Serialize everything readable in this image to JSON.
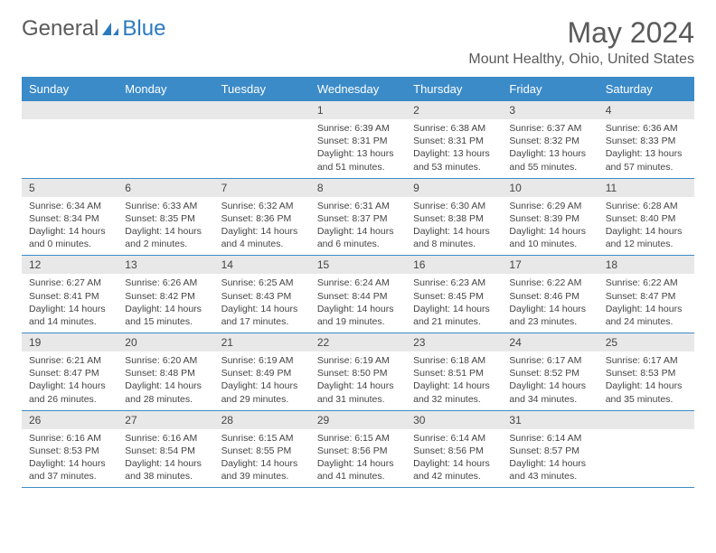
{
  "logo": {
    "text1": "General",
    "text2": "Blue"
  },
  "title": "May 2024",
  "location": "Mount Healthy, Ohio, United States",
  "colors": {
    "header_bg": "#3b8bc9",
    "header_text": "#ffffff",
    "daynum_bg": "#e8e8e8",
    "border": "#3b8bc9",
    "text": "#444444",
    "logo_gray": "#5a5a5a",
    "logo_blue": "#2b7bbf"
  },
  "day_names": [
    "Sunday",
    "Monday",
    "Tuesday",
    "Wednesday",
    "Thursday",
    "Friday",
    "Saturday"
  ],
  "weeks": [
    [
      {
        "n": "",
        "sr": "",
        "ss": "",
        "dl": ""
      },
      {
        "n": "",
        "sr": "",
        "ss": "",
        "dl": ""
      },
      {
        "n": "",
        "sr": "",
        "ss": "",
        "dl": ""
      },
      {
        "n": "1",
        "sr": "Sunrise: 6:39 AM",
        "ss": "Sunset: 8:31 PM",
        "dl": "Daylight: 13 hours and 51 minutes."
      },
      {
        "n": "2",
        "sr": "Sunrise: 6:38 AM",
        "ss": "Sunset: 8:31 PM",
        "dl": "Daylight: 13 hours and 53 minutes."
      },
      {
        "n": "3",
        "sr": "Sunrise: 6:37 AM",
        "ss": "Sunset: 8:32 PM",
        "dl": "Daylight: 13 hours and 55 minutes."
      },
      {
        "n": "4",
        "sr": "Sunrise: 6:36 AM",
        "ss": "Sunset: 8:33 PM",
        "dl": "Daylight: 13 hours and 57 minutes."
      }
    ],
    [
      {
        "n": "5",
        "sr": "Sunrise: 6:34 AM",
        "ss": "Sunset: 8:34 PM",
        "dl": "Daylight: 14 hours and 0 minutes."
      },
      {
        "n": "6",
        "sr": "Sunrise: 6:33 AM",
        "ss": "Sunset: 8:35 PM",
        "dl": "Daylight: 14 hours and 2 minutes."
      },
      {
        "n": "7",
        "sr": "Sunrise: 6:32 AM",
        "ss": "Sunset: 8:36 PM",
        "dl": "Daylight: 14 hours and 4 minutes."
      },
      {
        "n": "8",
        "sr": "Sunrise: 6:31 AM",
        "ss": "Sunset: 8:37 PM",
        "dl": "Daylight: 14 hours and 6 minutes."
      },
      {
        "n": "9",
        "sr": "Sunrise: 6:30 AM",
        "ss": "Sunset: 8:38 PM",
        "dl": "Daylight: 14 hours and 8 minutes."
      },
      {
        "n": "10",
        "sr": "Sunrise: 6:29 AM",
        "ss": "Sunset: 8:39 PM",
        "dl": "Daylight: 14 hours and 10 minutes."
      },
      {
        "n": "11",
        "sr": "Sunrise: 6:28 AM",
        "ss": "Sunset: 8:40 PM",
        "dl": "Daylight: 14 hours and 12 minutes."
      }
    ],
    [
      {
        "n": "12",
        "sr": "Sunrise: 6:27 AM",
        "ss": "Sunset: 8:41 PM",
        "dl": "Daylight: 14 hours and 14 minutes."
      },
      {
        "n": "13",
        "sr": "Sunrise: 6:26 AM",
        "ss": "Sunset: 8:42 PM",
        "dl": "Daylight: 14 hours and 15 minutes."
      },
      {
        "n": "14",
        "sr": "Sunrise: 6:25 AM",
        "ss": "Sunset: 8:43 PM",
        "dl": "Daylight: 14 hours and 17 minutes."
      },
      {
        "n": "15",
        "sr": "Sunrise: 6:24 AM",
        "ss": "Sunset: 8:44 PM",
        "dl": "Daylight: 14 hours and 19 minutes."
      },
      {
        "n": "16",
        "sr": "Sunrise: 6:23 AM",
        "ss": "Sunset: 8:45 PM",
        "dl": "Daylight: 14 hours and 21 minutes."
      },
      {
        "n": "17",
        "sr": "Sunrise: 6:22 AM",
        "ss": "Sunset: 8:46 PM",
        "dl": "Daylight: 14 hours and 23 minutes."
      },
      {
        "n": "18",
        "sr": "Sunrise: 6:22 AM",
        "ss": "Sunset: 8:47 PM",
        "dl": "Daylight: 14 hours and 24 minutes."
      }
    ],
    [
      {
        "n": "19",
        "sr": "Sunrise: 6:21 AM",
        "ss": "Sunset: 8:47 PM",
        "dl": "Daylight: 14 hours and 26 minutes."
      },
      {
        "n": "20",
        "sr": "Sunrise: 6:20 AM",
        "ss": "Sunset: 8:48 PM",
        "dl": "Daylight: 14 hours and 28 minutes."
      },
      {
        "n": "21",
        "sr": "Sunrise: 6:19 AM",
        "ss": "Sunset: 8:49 PM",
        "dl": "Daylight: 14 hours and 29 minutes."
      },
      {
        "n": "22",
        "sr": "Sunrise: 6:19 AM",
        "ss": "Sunset: 8:50 PM",
        "dl": "Daylight: 14 hours and 31 minutes."
      },
      {
        "n": "23",
        "sr": "Sunrise: 6:18 AM",
        "ss": "Sunset: 8:51 PM",
        "dl": "Daylight: 14 hours and 32 minutes."
      },
      {
        "n": "24",
        "sr": "Sunrise: 6:17 AM",
        "ss": "Sunset: 8:52 PM",
        "dl": "Daylight: 14 hours and 34 minutes."
      },
      {
        "n": "25",
        "sr": "Sunrise: 6:17 AM",
        "ss": "Sunset: 8:53 PM",
        "dl": "Daylight: 14 hours and 35 minutes."
      }
    ],
    [
      {
        "n": "26",
        "sr": "Sunrise: 6:16 AM",
        "ss": "Sunset: 8:53 PM",
        "dl": "Daylight: 14 hours and 37 minutes."
      },
      {
        "n": "27",
        "sr": "Sunrise: 6:16 AM",
        "ss": "Sunset: 8:54 PM",
        "dl": "Daylight: 14 hours and 38 minutes."
      },
      {
        "n": "28",
        "sr": "Sunrise: 6:15 AM",
        "ss": "Sunset: 8:55 PM",
        "dl": "Daylight: 14 hours and 39 minutes."
      },
      {
        "n": "29",
        "sr": "Sunrise: 6:15 AM",
        "ss": "Sunset: 8:56 PM",
        "dl": "Daylight: 14 hours and 41 minutes."
      },
      {
        "n": "30",
        "sr": "Sunrise: 6:14 AM",
        "ss": "Sunset: 8:56 PM",
        "dl": "Daylight: 14 hours and 42 minutes."
      },
      {
        "n": "31",
        "sr": "Sunrise: 6:14 AM",
        "ss": "Sunset: 8:57 PM",
        "dl": "Daylight: 14 hours and 43 minutes."
      },
      {
        "n": "",
        "sr": "",
        "ss": "",
        "dl": ""
      }
    ]
  ]
}
